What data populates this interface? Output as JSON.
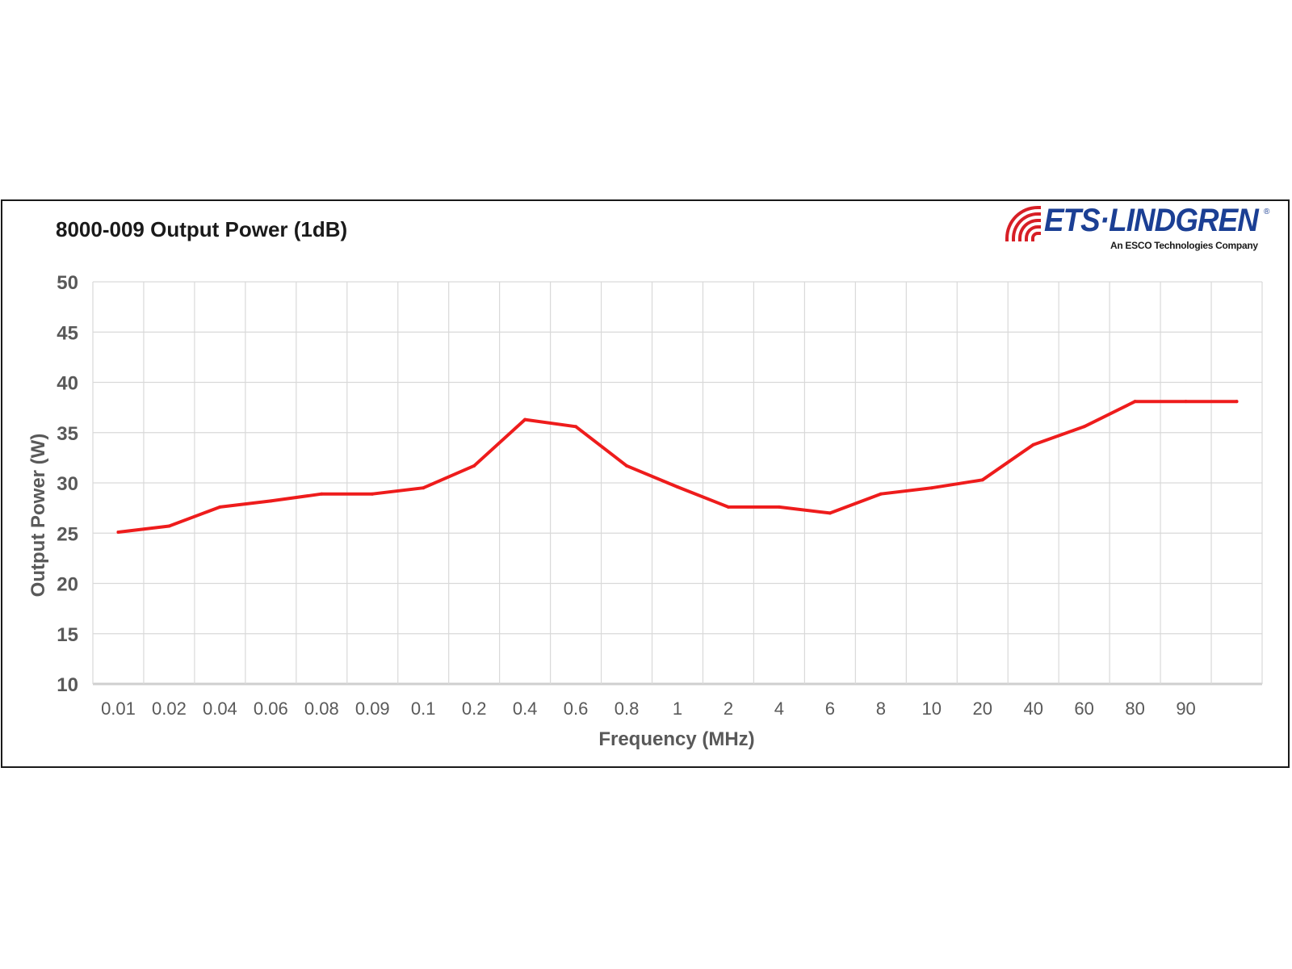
{
  "logo": {
    "brand": "ETS·LINDGREN",
    "registered": "®",
    "tagline": "An ESCO Technologies Company",
    "brand_color": "#1b3f94",
    "mark_color": "#d71f26"
  },
  "chart_data": {
    "type": "line",
    "title": "8000-009 Output Power (1dB)",
    "xlabel": "Frequency (MHz)",
    "ylabel": "Output Power (W)",
    "categories": [
      "0.01",
      "0.02",
      "0.04",
      "0.06",
      "0.08",
      "0.09",
      "0.1",
      "0.2",
      "0.4",
      "0.6",
      "0.8",
      "1",
      "2",
      "4",
      "6",
      "8",
      "10",
      "20",
      "40",
      "60",
      "80",
      "90",
      ""
    ],
    "series": [
      {
        "color": "#ee1c1c",
        "values": [
          25.1,
          25.7,
          27.6,
          28.2,
          28.9,
          28.9,
          29.5,
          31.7,
          36.3,
          35.6,
          31.7,
          29.6,
          27.6,
          27.6,
          27.0,
          28.9,
          29.5,
          30.3,
          33.8,
          35.6,
          38.1,
          38.1,
          38.1
        ]
      }
    ],
    "ylim": [
      10,
      50
    ],
    "yticks": [
      10,
      15,
      20,
      25,
      30,
      35,
      40,
      45,
      50
    ],
    "grid": true,
    "legend": "none"
  }
}
